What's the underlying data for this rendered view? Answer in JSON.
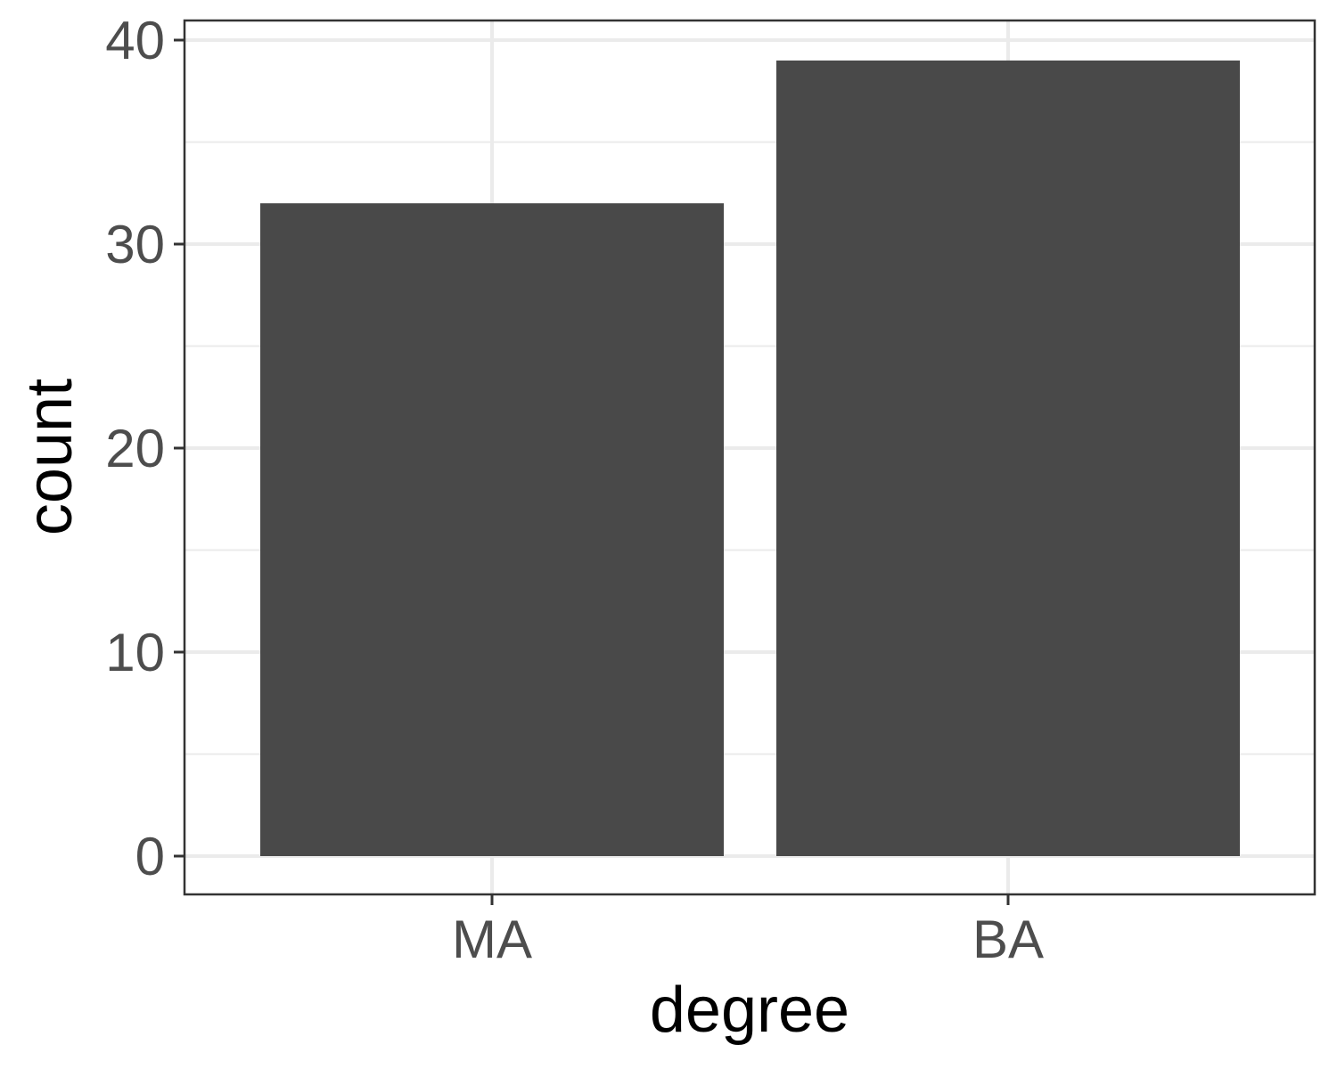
{
  "chart_data": {
    "type": "bar",
    "categories": [
      "MA",
      "BA"
    ],
    "values": [
      32,
      39
    ],
    "xlabel": "degree",
    "ylabel": "count",
    "ylim": [
      0,
      40
    ],
    "y_ticks": [
      "0",
      "10",
      "20",
      "30",
      "40"
    ],
    "grid": true,
    "legend": "none",
    "colors": {
      "bar": "#494949",
      "grid": "#ebebeb",
      "panel_border": "#333333",
      "tick_text": "#4d4d4d",
      "title_text": "#000000"
    }
  }
}
